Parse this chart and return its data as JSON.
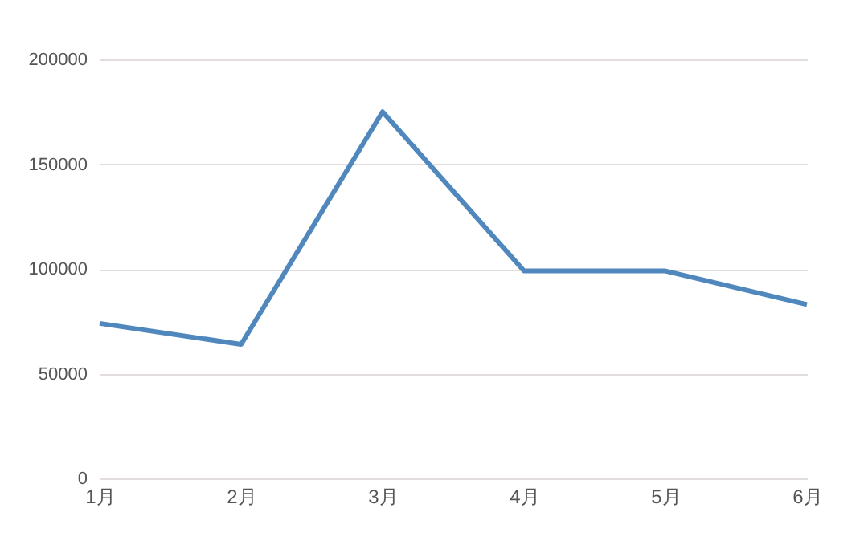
{
  "chart_data": {
    "type": "line",
    "categories": [
      "1月",
      "2月",
      "3月",
      "4月",
      "5月",
      "6月"
    ],
    "series": [
      {
        "color": "#5088bd",
        "values": [
          74000,
          64000,
          175000,
          99000,
          99000,
          83000
        ]
      }
    ],
    "ylim": [
      0,
      200000
    ],
    "yticks": [
      0,
      50000,
      100000,
      150000,
      200000
    ],
    "grid": "y",
    "legend": false,
    "marker": "none",
    "line_style": "solid"
  }
}
